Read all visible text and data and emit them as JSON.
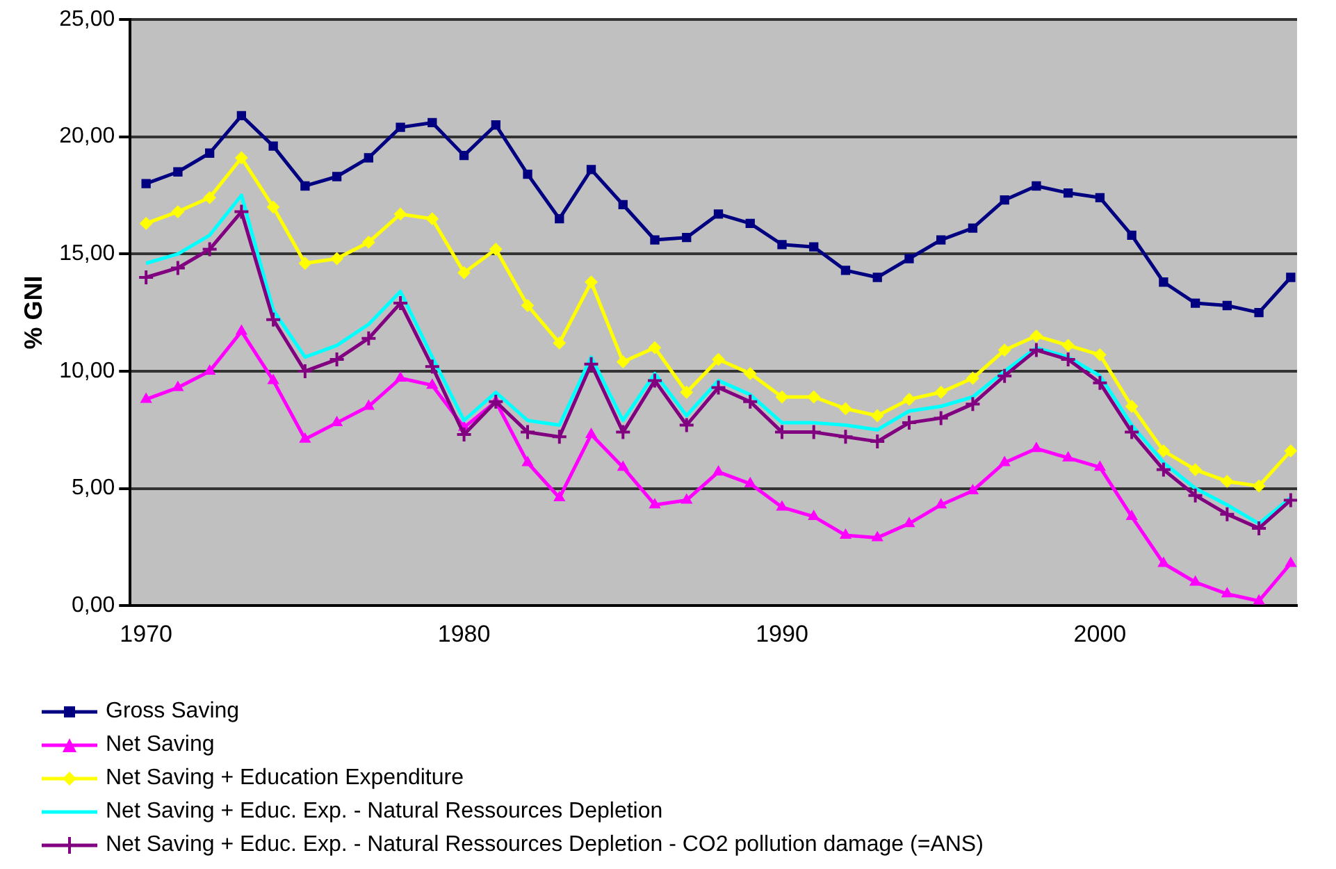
{
  "chart_data": {
    "type": "line",
    "ylabel": "% GNI",
    "x": [
      1970,
      1971,
      1972,
      1973,
      1974,
      1975,
      1976,
      1977,
      1978,
      1979,
      1980,
      1981,
      1982,
      1983,
      1984,
      1985,
      1986,
      1987,
      1988,
      1989,
      1990,
      1991,
      1992,
      1993,
      1994,
      1995,
      1996,
      1997,
      1998,
      1999,
      2000,
      2001,
      2002,
      2003,
      2004,
      2005,
      2006
    ],
    "series": [
      {
        "name": "Gross Saving",
        "color": "#000080",
        "marker": "square",
        "values": [
          18.0,
          18.5,
          19.3,
          20.9,
          19.6,
          17.9,
          18.3,
          19.1,
          20.4,
          20.6,
          19.2,
          20.5,
          18.4,
          16.5,
          18.6,
          17.1,
          15.6,
          15.7,
          16.7,
          16.3,
          15.4,
          15.3,
          14.3,
          14.0,
          14.8,
          15.6,
          16.1,
          17.3,
          17.9,
          17.6,
          17.4,
          15.8,
          13.8,
          12.9,
          12.8,
          12.5,
          14.0
        ]
      },
      {
        "name": "Net Saving",
        "color": "#ff00ff",
        "marker": "triangle",
        "values": [
          8.8,
          9.3,
          10.0,
          11.7,
          9.6,
          7.1,
          7.8,
          8.5,
          9.7,
          9.4,
          7.6,
          8.7,
          6.1,
          4.6,
          7.3,
          5.9,
          4.3,
          4.5,
          5.7,
          5.2,
          4.2,
          3.8,
          3.0,
          2.9,
          3.5,
          4.3,
          4.9,
          6.1,
          6.7,
          6.3,
          5.9,
          3.8,
          1.8,
          1.0,
          0.5,
          0.2,
          1.8
        ]
      },
      {
        "name": "Net Saving + Education Expenditure",
        "color": "#ffff00",
        "marker": "diamond",
        "values": [
          16.3,
          16.8,
          17.4,
          19.1,
          17.0,
          14.6,
          14.8,
          15.5,
          16.7,
          16.5,
          14.2,
          15.2,
          12.8,
          11.2,
          13.8,
          10.4,
          11.0,
          9.1,
          10.5,
          9.9,
          8.9,
          8.9,
          8.4,
          8.1,
          8.8,
          9.1,
          9.7,
          10.9,
          11.5,
          11.1,
          10.7,
          8.5,
          6.6,
          5.8,
          5.3,
          5.1,
          6.6
        ]
      },
      {
        "name": "Net Saving + Educ. Exp. - Natural Ressources Depletion",
        "color": "#00ffff",
        "marker": "none",
        "values": [
          14.6,
          15.0,
          15.8,
          17.5,
          12.6,
          10.6,
          11.1,
          12.0,
          13.4,
          10.6,
          7.9,
          9.1,
          7.9,
          7.7,
          10.6,
          7.9,
          9.9,
          8.1,
          9.6,
          9.0,
          7.8,
          7.8,
          7.7,
          7.5,
          8.3,
          8.5,
          8.9,
          10.0,
          11.0,
          10.6,
          9.8,
          7.7,
          6.1,
          5.0,
          4.3,
          3.5,
          4.6
        ]
      },
      {
        "name": "Net Saving + Educ. Exp. - Natural Ressources Depletion - CO2 pollution damage (=ANS)",
        "color": "#800080",
        "marker": "cross",
        "values": [
          14.0,
          14.4,
          15.2,
          16.8,
          12.2,
          10.0,
          10.5,
          11.4,
          12.9,
          10.2,
          7.3,
          8.7,
          7.4,
          7.2,
          10.3,
          7.4,
          9.6,
          7.7,
          9.3,
          8.7,
          7.4,
          7.4,
          7.2,
          7.0,
          7.8,
          8.0,
          8.6,
          9.8,
          10.9,
          10.5,
          9.5,
          7.4,
          5.8,
          4.7,
          3.9,
          3.3,
          4.5
        ]
      }
    ],
    "xlim": [
      1969.5,
      2006.2
    ],
    "xticks": [
      1970,
      1980,
      1990,
      2000
    ],
    "ylim": [
      0,
      25
    ],
    "yticks": [
      {
        "value": 0,
        "label": "0,00"
      },
      {
        "value": 5,
        "label": "5,00"
      },
      {
        "value": 10,
        "label": "10,00"
      },
      {
        "value": 15,
        "label": "15,00"
      },
      {
        "value": 20,
        "label": "20,00"
      },
      {
        "value": 25,
        "label": "25,00"
      }
    ],
    "grid": "y",
    "legend": "bottom"
  }
}
